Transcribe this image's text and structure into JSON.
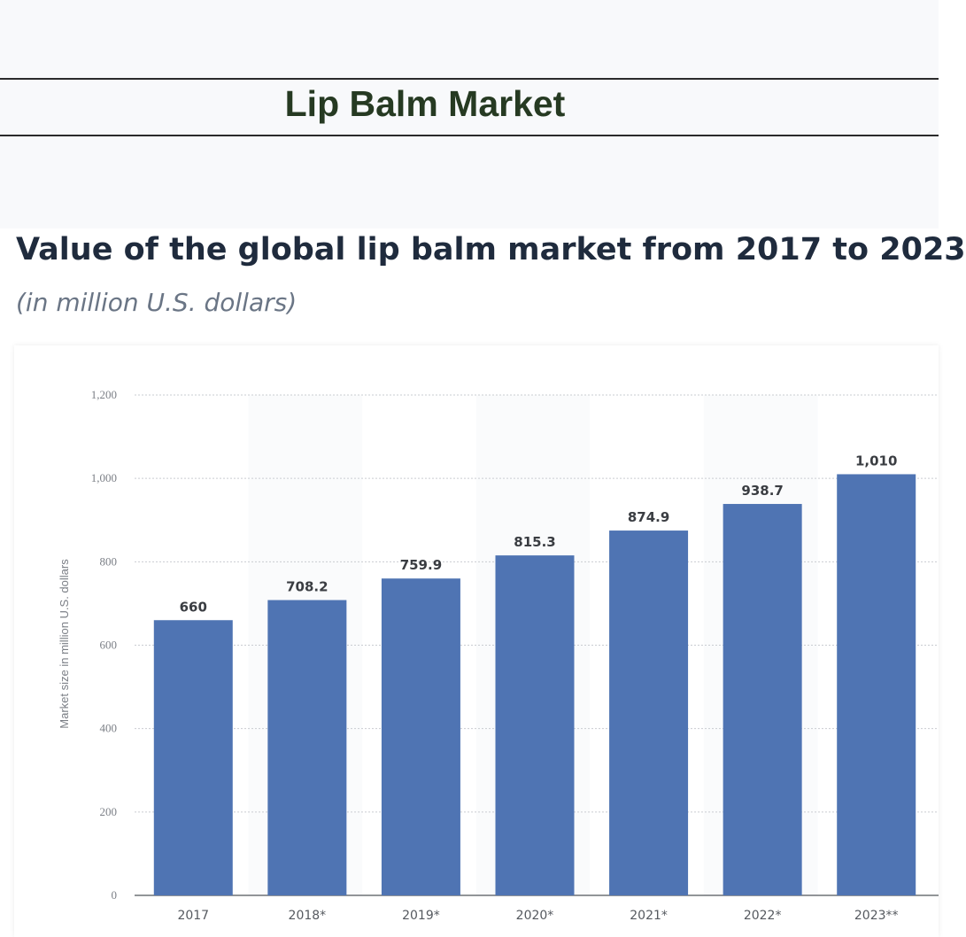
{
  "banner": {
    "title": "Lip Balm Market"
  },
  "chart_header": {
    "title": "Value of the global lip balm market from 2017 to 2023",
    "subtitle": "(in million U.S. dollars)"
  },
  "chart_data": {
    "type": "bar",
    "title": "Value of the global lip balm market from 2017 to 2023",
    "subtitle": "(in million U.S. dollars)",
    "categories": [
      "2017",
      "2018*",
      "2019*",
      "2020*",
      "2021*",
      "2022*",
      "2023**"
    ],
    "values": [
      660,
      708.2,
      759.9,
      815.3,
      874.9,
      938.7,
      1010
    ],
    "value_labels": [
      "660",
      "708.2",
      "759.9",
      "815.3",
      "874.9",
      "938.7",
      "1,010"
    ],
    "xlabel": "",
    "ylabel": "Market size in million U.S. dollars",
    "ylim": [
      0,
      1200
    ],
    "yticks": [
      0,
      200,
      400,
      600,
      800,
      1000,
      1200
    ],
    "ytick_labels": [
      "0",
      "200",
      "400",
      "600",
      "800",
      "1,000",
      "1,200"
    ],
    "grid": true,
    "bar_color": "#4f74b3"
  }
}
